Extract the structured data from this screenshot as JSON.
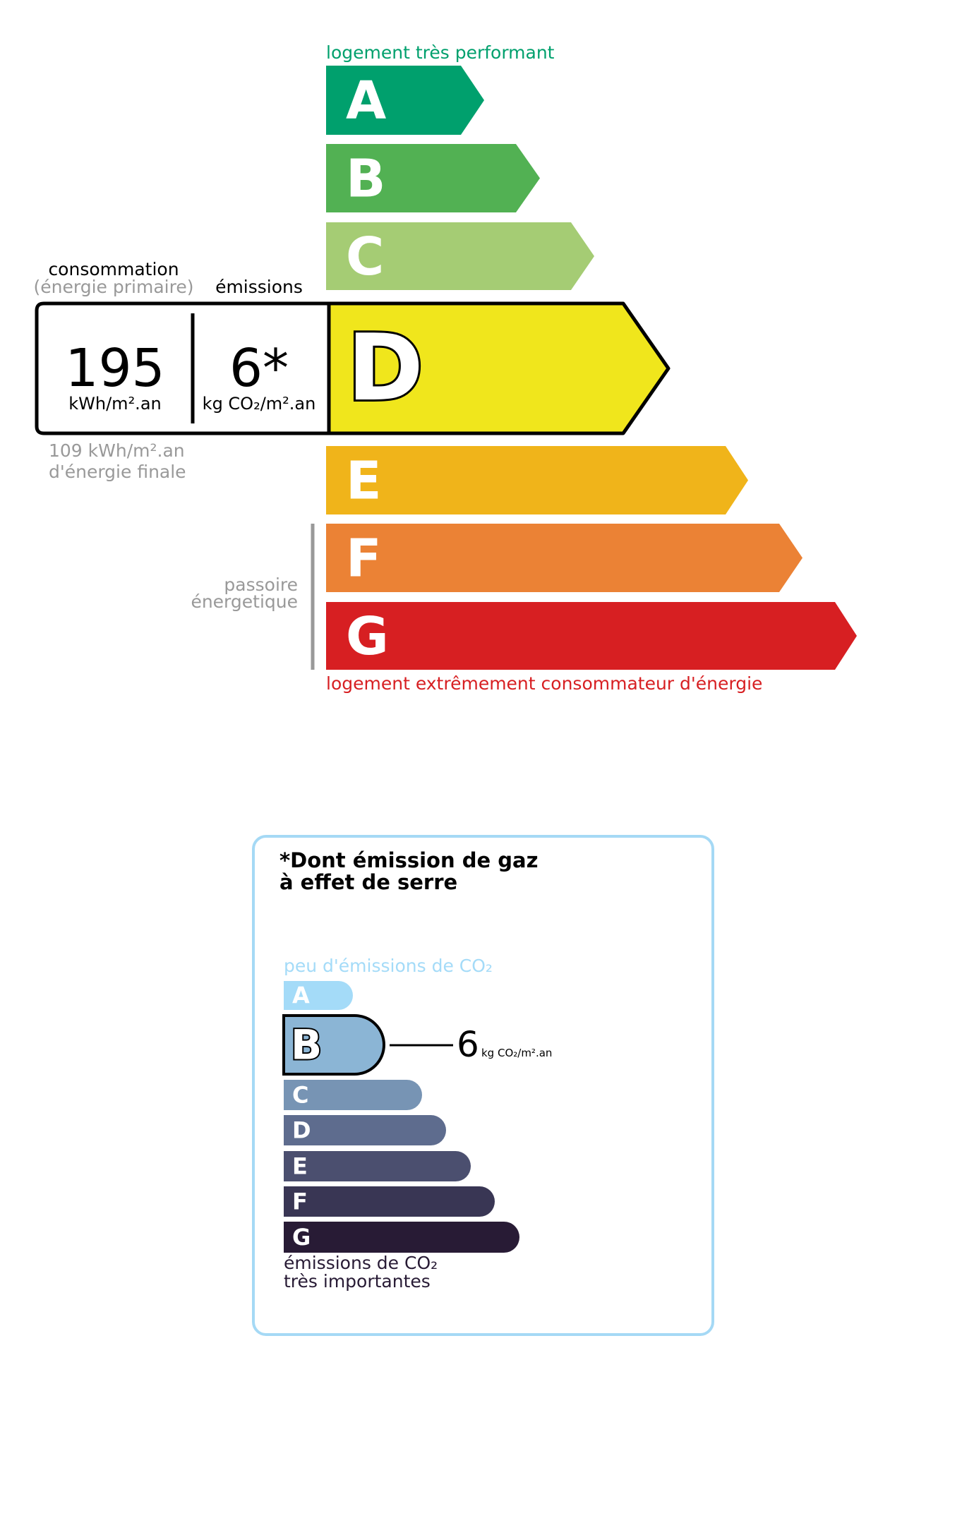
{
  "energy_label": {
    "top_caption": "logement très performant",
    "bottom_caption": "logement extrêmement consommateur d'énergie",
    "classes": [
      {
        "letter": "A",
        "color": "#00a06d"
      },
      {
        "letter": "B",
        "color": "#52b153"
      },
      {
        "letter": "C",
        "color": "#a5cc74"
      },
      {
        "letter": "D",
        "color": "#f0e61c"
      },
      {
        "letter": "E",
        "color": "#f0b41a"
      },
      {
        "letter": "F",
        "color": "#eb8235"
      },
      {
        "letter": "G",
        "color": "#d71f22"
      }
    ],
    "current_class": "D",
    "consumption_label": "consommation",
    "consumption_sublabel": "(énergie primaire)",
    "emissions_label": "émissions",
    "consumption_value": "195",
    "consumption_unit": "kWh/m².an",
    "emissions_value": "6*",
    "emissions_unit": "kg CO₂/m².an",
    "final_energy_value": "109 kWh/m².an",
    "final_energy_label": "d'énergie finale",
    "passoire_line1": "passoire",
    "passoire_line2": "énergetique"
  },
  "ges_label": {
    "title_line1": "*Dont émission de gaz",
    "title_line2": "à effet de serre",
    "top_caption": "peu d'émissions de CO₂",
    "bottom_caption_line1": "émissions de CO₂",
    "bottom_caption_line2": "très importantes",
    "classes": [
      {
        "letter": "A",
        "color": "#a4dbf8"
      },
      {
        "letter": "B",
        "color": "#8bb5d5"
      },
      {
        "letter": "C",
        "color": "#7794b4"
      },
      {
        "letter": "D",
        "color": "#5e6c8e"
      },
      {
        "letter": "E",
        "color": "#4b4f6f"
      },
      {
        "letter": "F",
        "color": "#393654"
      },
      {
        "letter": "G",
        "color": "#281b35"
      }
    ],
    "current_class": "B",
    "value": "6",
    "unit": "kg CO₂/m².an",
    "border_color": "#a5d9f5"
  }
}
